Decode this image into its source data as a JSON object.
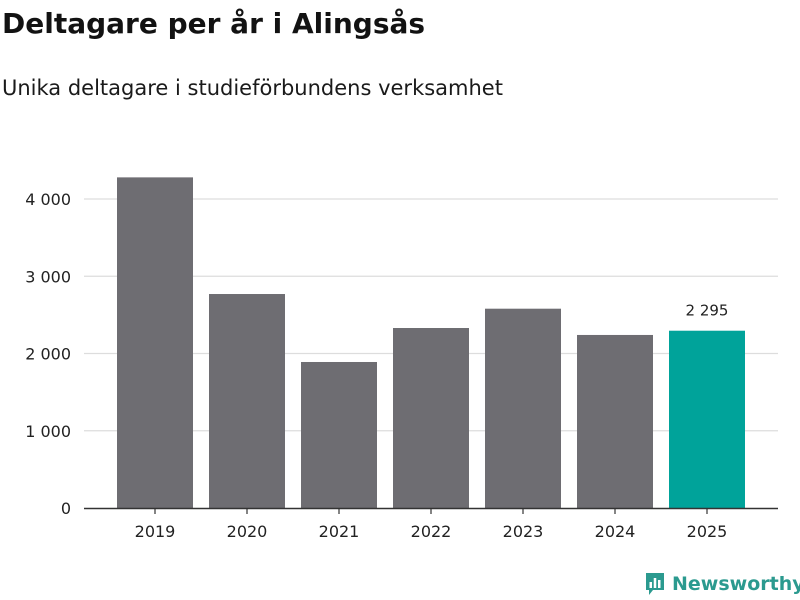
{
  "title": "Deltagare per år i Alingsås",
  "subtitle": "Unika deltagare i studieförbundens verksamhet",
  "brand": "Newsworthy",
  "logo_icon": "bar-chart-speech-bubble-icon",
  "colors": {
    "bar": "#6e6d72",
    "highlight": "#00a39a",
    "grid": "#dddddd",
    "axis": "#333333",
    "brand": "#2b9a8f"
  },
  "chart_data": {
    "type": "bar",
    "title": "Deltagare per år i Alingsås",
    "subtitle": "Unika deltagare i studieförbundens verksamhet",
    "xlabel": "",
    "ylabel": "",
    "categories": [
      "2019",
      "2020",
      "2021",
      "2022",
      "2023",
      "2024",
      "2025"
    ],
    "values": [
      4280,
      2770,
      1890,
      2330,
      2580,
      2240,
      2295
    ],
    "highlight_index": 6,
    "data_labels": [
      {
        "index": 6,
        "text": "2 295"
      }
    ],
    "y_ticks": [
      0,
      1000,
      2000,
      3000,
      4000
    ],
    "y_tick_labels": [
      "0",
      "1 000",
      "2 000",
      "3 000",
      "4 000"
    ],
    "ylim": [
      0,
      4000
    ],
    "grid": true,
    "legend": "none"
  }
}
